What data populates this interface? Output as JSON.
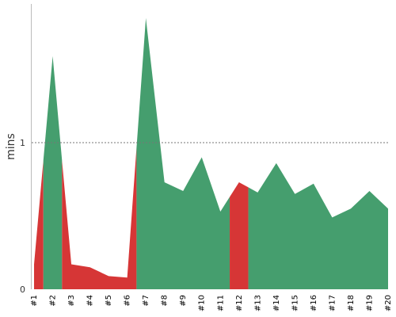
{
  "chart_data": {
    "type": "area",
    "title": "",
    "xlabel": "",
    "ylabel": "mins",
    "categories": [
      "#1",
      "#2",
      "#3",
      "#4",
      "#5",
      "#6",
      "#7",
      "#8",
      "#9",
      "#10",
      "#11",
      "#12",
      "#13",
      "#14",
      "#15",
      "#16",
      "#17",
      "#18",
      "#19",
      "#20"
    ],
    "values": [
      0.17,
      1.59,
      0.17,
      0.15,
      0.09,
      0.08,
      1.85,
      0.73,
      0.67,
      0.9,
      0.53,
      0.73,
      0.66,
      0.86,
      0.65,
      0.72,
      0.49,
      0.55,
      0.67,
      0.55
    ],
    "status": [
      "fail",
      "pass",
      "fail",
      "fail",
      "fail",
      "fail",
      "pass",
      "pass",
      "pass",
      "pass",
      "pass",
      "fail",
      "pass",
      "pass",
      "pass",
      "pass",
      "pass",
      "pass",
      "pass",
      "pass"
    ],
    "colors": {
      "pass": "#459e6e",
      "fail": "#d63636"
    },
    "yticks": [
      0,
      1
    ],
    "ylim": [
      0,
      1.85
    ],
    "reference_line": {
      "value": 1,
      "style": "dotted"
    },
    "grid": false
  }
}
